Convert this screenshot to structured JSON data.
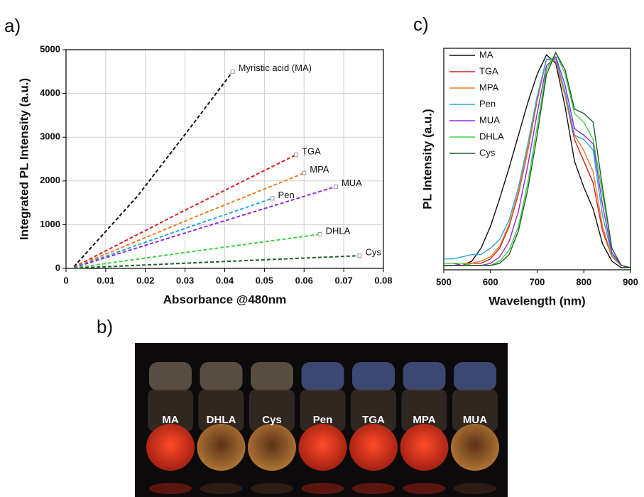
{
  "chart_data": [
    {
      "type": "line",
      "panel_label": "a)",
      "x_label": "Absorbance @480nm",
      "y_label": "Integrated PL Intensity (a.u.)",
      "xlim": [
        0,
        0.08
      ],
      "xticks": [
        0,
        0.01,
        0.02,
        0.03,
        0.04,
        0.05,
        0.06,
        0.07,
        0.08
      ],
      "ylim": [
        0,
        5000
      ],
      "yticks": [
        0,
        1000,
        2000,
        3000,
        4000,
        5000
      ],
      "grid": true,
      "dashed": true,
      "series": [
        {
          "name": "Myristic acid (MA)",
          "color": "#111111",
          "x": [
            0.002,
            0.018,
            0.032,
            0.042
          ],
          "values": [
            40,
            1650,
            3300,
            4500
          ]
        },
        {
          "name": "TGA",
          "color": "#d42020",
          "x": [
            0.002,
            0.03,
            0.058
          ],
          "values": [
            30,
            1330,
            2600
          ]
        },
        {
          "name": "MPA",
          "color": "#f07c1c",
          "x": [
            0.002,
            0.031,
            0.06
          ],
          "values": [
            25,
            1120,
            2180
          ]
        },
        {
          "name": "Pen",
          "color": "#27a7d9",
          "x": [
            0.002,
            0.027,
            0.052
          ],
          "values": [
            20,
            820,
            1600
          ]
        },
        {
          "name": "MUA",
          "color": "#8a2be2",
          "x": [
            0.002,
            0.035,
            0.068
          ],
          "values": [
            20,
            950,
            1870
          ]
        },
        {
          "name": "DHLA",
          "color": "#3fd13f",
          "x": [
            0.002,
            0.033,
            0.064
          ],
          "values": [
            10,
            400,
            780
          ]
        },
        {
          "name": "Cys",
          "color": "#1e5e2a",
          "x": [
            0.002,
            0.038,
            0.074
          ],
          "values": [
            5,
            150,
            290
          ]
        }
      ]
    },
    {
      "type": "line",
      "panel_label": "c)",
      "x_label": "Wavelength (nm)",
      "y_label": "PL Intensity (a.u.)",
      "xlim": [
        500,
        900
      ],
      "xticks": [
        500,
        600,
        700,
        800,
        900
      ],
      "ylim": [
        0,
        1.02
      ],
      "legend": "top-left",
      "x": [
        500,
        520,
        540,
        560,
        580,
        600,
        620,
        640,
        660,
        680,
        700,
        720,
        740,
        760,
        780,
        800,
        820,
        840,
        860,
        880,
        900
      ],
      "series": [
        {
          "name": "MA",
          "color": "#111111",
          "values": [
            0.02,
            0.02,
            0.02,
            0.04,
            0.1,
            0.2,
            0.33,
            0.47,
            0.62,
            0.77,
            0.9,
            0.99,
            0.95,
            0.75,
            0.5,
            0.38,
            0.28,
            0.12,
            0.04,
            0.01,
            0.01
          ]
        },
        {
          "name": "TGA",
          "color": "#d42020",
          "values": [
            0.02,
            0.02,
            0.02,
            0.03,
            0.03,
            0.05,
            0.1,
            0.2,
            0.35,
            0.55,
            0.78,
            0.97,
            0.96,
            0.8,
            0.6,
            0.5,
            0.4,
            0.18,
            0.06,
            0.02,
            0.01
          ]
        },
        {
          "name": "MPA",
          "color": "#f07c1c",
          "values": [
            0.03,
            0.03,
            0.03,
            0.03,
            0.04,
            0.06,
            0.11,
            0.21,
            0.36,
            0.56,
            0.79,
            0.97,
            0.96,
            0.8,
            0.62,
            0.55,
            0.45,
            0.2,
            0.06,
            0.02,
            0.01
          ]
        },
        {
          "name": "Pen",
          "color": "#27a7d9",
          "values": [
            0.05,
            0.05,
            0.06,
            0.07,
            0.07,
            0.1,
            0.14,
            0.23,
            0.38,
            0.58,
            0.8,
            0.97,
            0.97,
            0.82,
            0.62,
            0.6,
            0.55,
            0.25,
            0.07,
            0.02,
            0.01
          ]
        },
        {
          "name": "MUA",
          "color": "#8a2be2",
          "values": [
            0.03,
            0.03,
            0.02,
            0.02,
            0.02,
            0.03,
            0.06,
            0.13,
            0.27,
            0.48,
            0.72,
            0.94,
            0.98,
            0.85,
            0.65,
            0.62,
            0.58,
            0.3,
            0.08,
            0.02,
            0.01
          ]
        },
        {
          "name": "DHLA",
          "color": "#3fd13f",
          "values": [
            0.03,
            0.03,
            0.03,
            0.02,
            0.02,
            0.02,
            0.04,
            0.09,
            0.2,
            0.4,
            0.66,
            0.92,
            1.0,
            0.9,
            0.72,
            0.68,
            0.6,
            0.35,
            0.1,
            0.02,
            0.01
          ]
        },
        {
          "name": "Cys",
          "color": "#1e5e2a",
          "values": [
            0.02,
            0.02,
            0.02,
            0.02,
            0.02,
            0.02,
            0.03,
            0.07,
            0.18,
            0.37,
            0.62,
            0.9,
            1.0,
            0.92,
            0.74,
            0.72,
            0.68,
            0.38,
            0.1,
            0.02,
            0.01
          ]
        }
      ]
    }
  ],
  "photo": {
    "panel_label": "b)",
    "vial_labels": [
      "MA",
      "DHLA",
      "Cys",
      "Pen",
      "TGA",
      "MPA",
      "MUA"
    ]
  }
}
